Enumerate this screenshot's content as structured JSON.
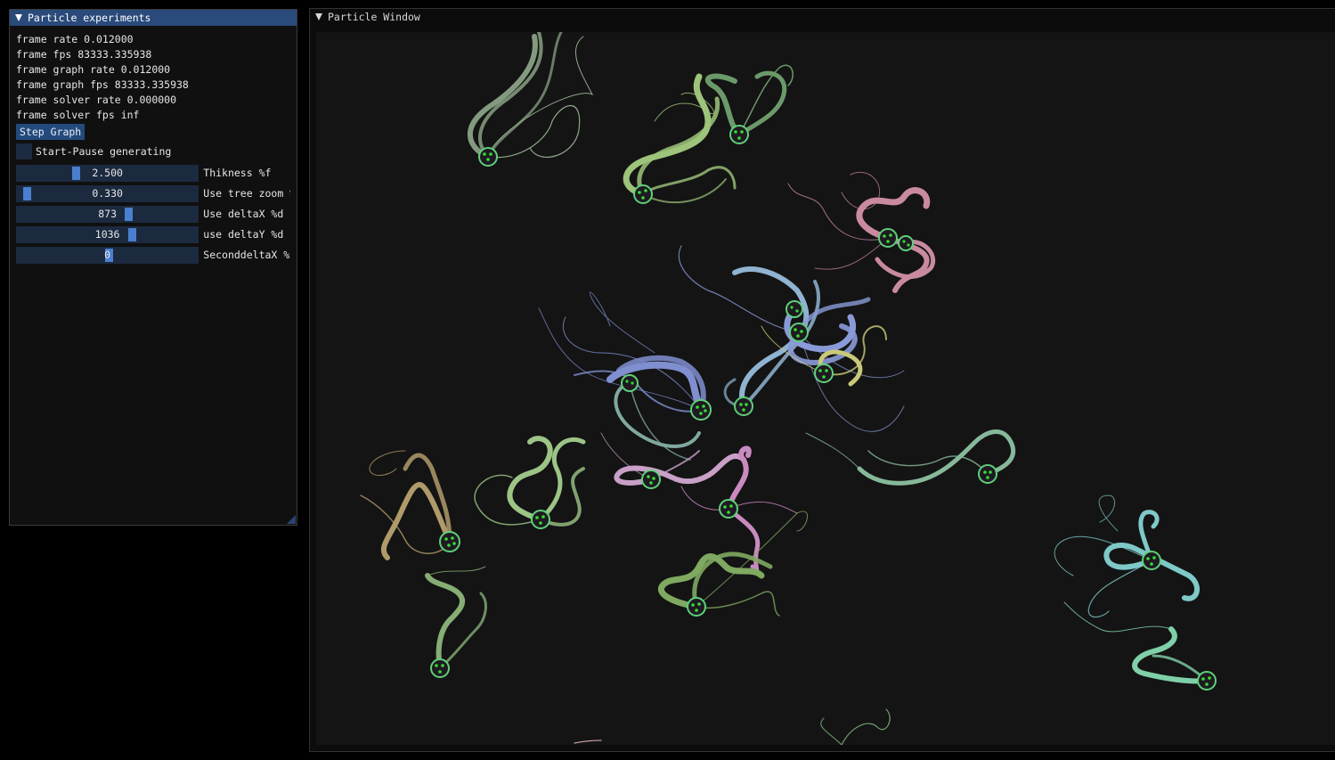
{
  "panel": {
    "title": "Particle experiments",
    "stats": [
      "frame rate 0.012000",
      "frame fps 83333.335938",
      "frame graph rate 0.012000",
      "frame graph fps 83333.335938",
      "frame solver rate 0.000000",
      "frame solver fps inf"
    ],
    "step_button": "Step Graph",
    "checkbox_label": "Start-Pause generating",
    "sliders": [
      {
        "value": "2.500",
        "label": "Thikness %f",
        "fraction": 0.3
      },
      {
        "value": "0.330",
        "label": "Use tree zoom %",
        "fraction": 0.04
      },
      {
        "value": "873",
        "label": "Use deltaX %d",
        "fraction": 0.6
      },
      {
        "value": "1036",
        "label": "use deltaY %d",
        "fraction": 0.62
      },
      {
        "value": "0",
        "label": "SeconddeltaX %",
        "fraction": 0.5
      }
    ]
  },
  "particle_window": {
    "title": "Particle Window"
  },
  "colors": {
    "title_bar": "#294a7a",
    "button": "#234a7c",
    "slider_bg": "#1c2a40",
    "slider_grab": "#4a7fd0",
    "canvas_bg": "#141414",
    "dot": "#33dd33"
  }
}
